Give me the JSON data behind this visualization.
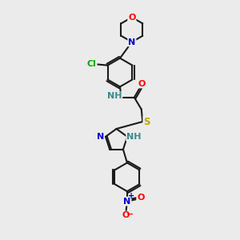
{
  "bg_color": "#ebebeb",
  "bond_color": "#1a1a1a",
  "bond_width": 1.5,
  "atom_colors": {
    "O": "#ff0000",
    "N": "#0000cc",
    "Cl": "#00aa00",
    "S": "#bbaa00",
    "NH": "#3a8a8a",
    "NO2_N": "#0000cc",
    "NO2_O": "#ff0000"
  },
  "figsize": [
    3.0,
    3.0
  ],
  "dpi": 100
}
